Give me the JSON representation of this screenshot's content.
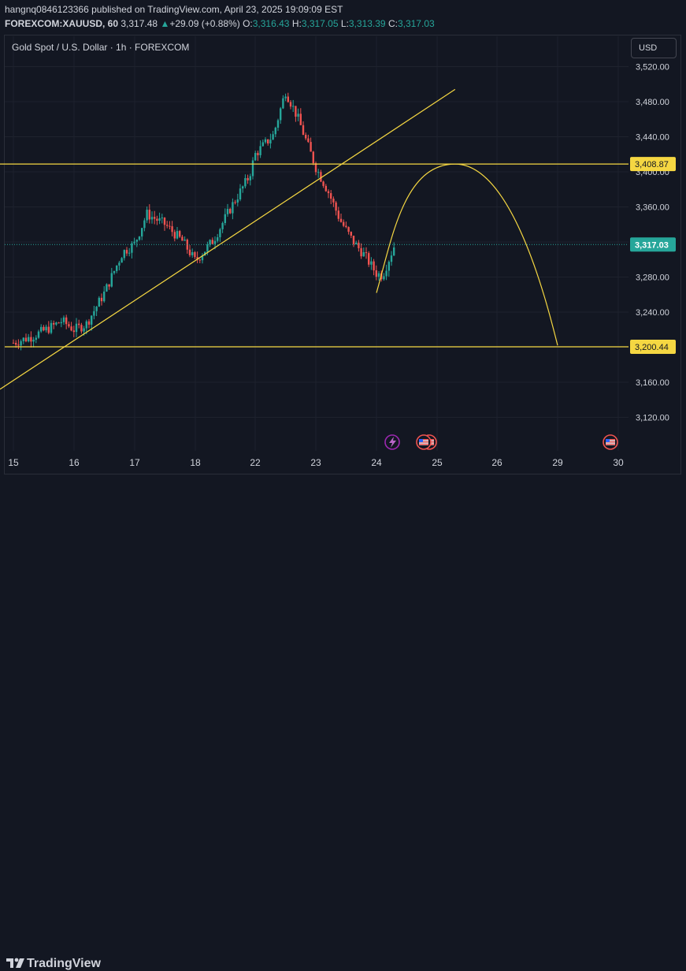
{
  "header": {
    "publisher_line": "hangnq0846123366 published on TradingView.com, April 23, 2025 19:09:09 EST",
    "symbol": "FOREXCOM:XAUUSD, 60",
    "last": "3,317.48",
    "change_arrow": "▲",
    "change": "+29.09 (+0.88%)",
    "o_label": "O:",
    "o_value": "3,316.43",
    "h_label": "H:",
    "h_value": "3,317.05",
    "l_label": "L:",
    "l_value": "3,313.39",
    "c_label": "C:",
    "c_value": "3,317.03"
  },
  "chart_title": "Gold Spot / U.S. Dollar · 1h · FOREXCOM",
  "currency_button": "USD",
  "footer": {
    "brand": "TradingView"
  },
  "colors": {
    "background": "#131722",
    "up": "#26a69a",
    "down": "#ef5350",
    "drawing": "#f5d742",
    "text": "#d1d4dc",
    "price_label_bg": "#26a69a"
  },
  "chart_data": {
    "type": "candlestick",
    "title": "Gold Spot / U.S. Dollar · 1h · FOREXCOM",
    "y_ticks": [
      3520,
      3480,
      3440,
      3400,
      3360,
      3320,
      3280,
      3240,
      3200,
      3160,
      3120
    ],
    "y_tick_labels": [
      "3,520.00",
      "3,480.00",
      "3,440.00",
      "3,400.00",
      "3,360.00",
      "3,320.00",
      "3,280.00",
      "3,240.00",
      "3,200.00",
      "3,160.00",
      "3,120.00"
    ],
    "ylim": [
      3102,
      3535
    ],
    "x_tick_labels": [
      "15",
      "16",
      "17",
      "18",
      "22",
      "23",
      "24",
      "25",
      "26",
      "29",
      "30"
    ],
    "close_path": [
      [
        "15",
        3205
      ],
      [
        "15.3",
        3212
      ],
      [
        "15.6",
        3222
      ],
      [
        "15.8",
        3230
      ],
      [
        "16",
        3220
      ],
      [
        "16.2",
        3226
      ],
      [
        "16.5",
        3262
      ],
      [
        "16.8",
        3308
      ],
      [
        "17",
        3318
      ],
      [
        "17.2",
        3352
      ],
      [
        "17.5",
        3340
      ],
      [
        "17.8",
        3320
      ],
      [
        "18",
        3298
      ],
      [
        "18.3",
        3322
      ],
      [
        "18.6",
        3360
      ],
      [
        "18.9",
        3395
      ],
      [
        "22",
        3420
      ],
      [
        "22.3",
        3442
      ],
      [
        "22.5",
        3492
      ],
      [
        "22.7",
        3462
      ],
      [
        "23",
        3405
      ],
      [
        "23.2",
        3378
      ],
      [
        "23.4",
        3345
      ],
      [
        "23.6",
        3322
      ],
      [
        "23.8",
        3305
      ],
      [
        "24",
        3284
      ],
      [
        "24.1",
        3282
      ],
      [
        "24.3",
        3317
      ]
    ],
    "last_price": 3317.03,
    "last_price_label": "3,317.03",
    "horizontal_levels": [
      {
        "value": 3408.87,
        "label": "3,408.87"
      },
      {
        "value": 3200.44,
        "label": "3,200.44"
      }
    ],
    "trendline": {
      "from": [
        "14.9",
        3152
      ],
      "to": [
        "25.3",
        3494
      ]
    },
    "projection_arc": {
      "from": [
        "24",
        3262
      ],
      "peak": [
        "25.3",
        3408.87
      ],
      "to": [
        "29",
        3202
      ]
    },
    "event_markers": [
      "bolt-event",
      "us-flag-event",
      "us-flag-event",
      "us-flag-event"
    ],
    "grid": true
  }
}
